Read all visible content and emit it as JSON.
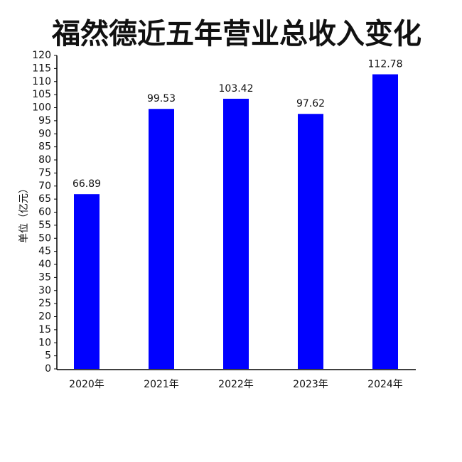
{
  "chart_data": {
    "type": "bar",
    "title": "福然德近五年营业总收入变化",
    "y_label": "单位（亿元）",
    "categories": [
      "2020年",
      "2021年",
      "2022年",
      "2023年",
      "2024年"
    ],
    "values": [
      66.89,
      99.53,
      103.42,
      97.62,
      112.78
    ],
    "color": "#0000ff",
    "ylim": [
      0,
      120
    ],
    "yticks": [
      0,
      5,
      10,
      15,
      20,
      25,
      30,
      35,
      40,
      45,
      50,
      55,
      60,
      65,
      70,
      75,
      80,
      85,
      90,
      95,
      100,
      105,
      110,
      115,
      120
    ],
    "grid": false
  }
}
